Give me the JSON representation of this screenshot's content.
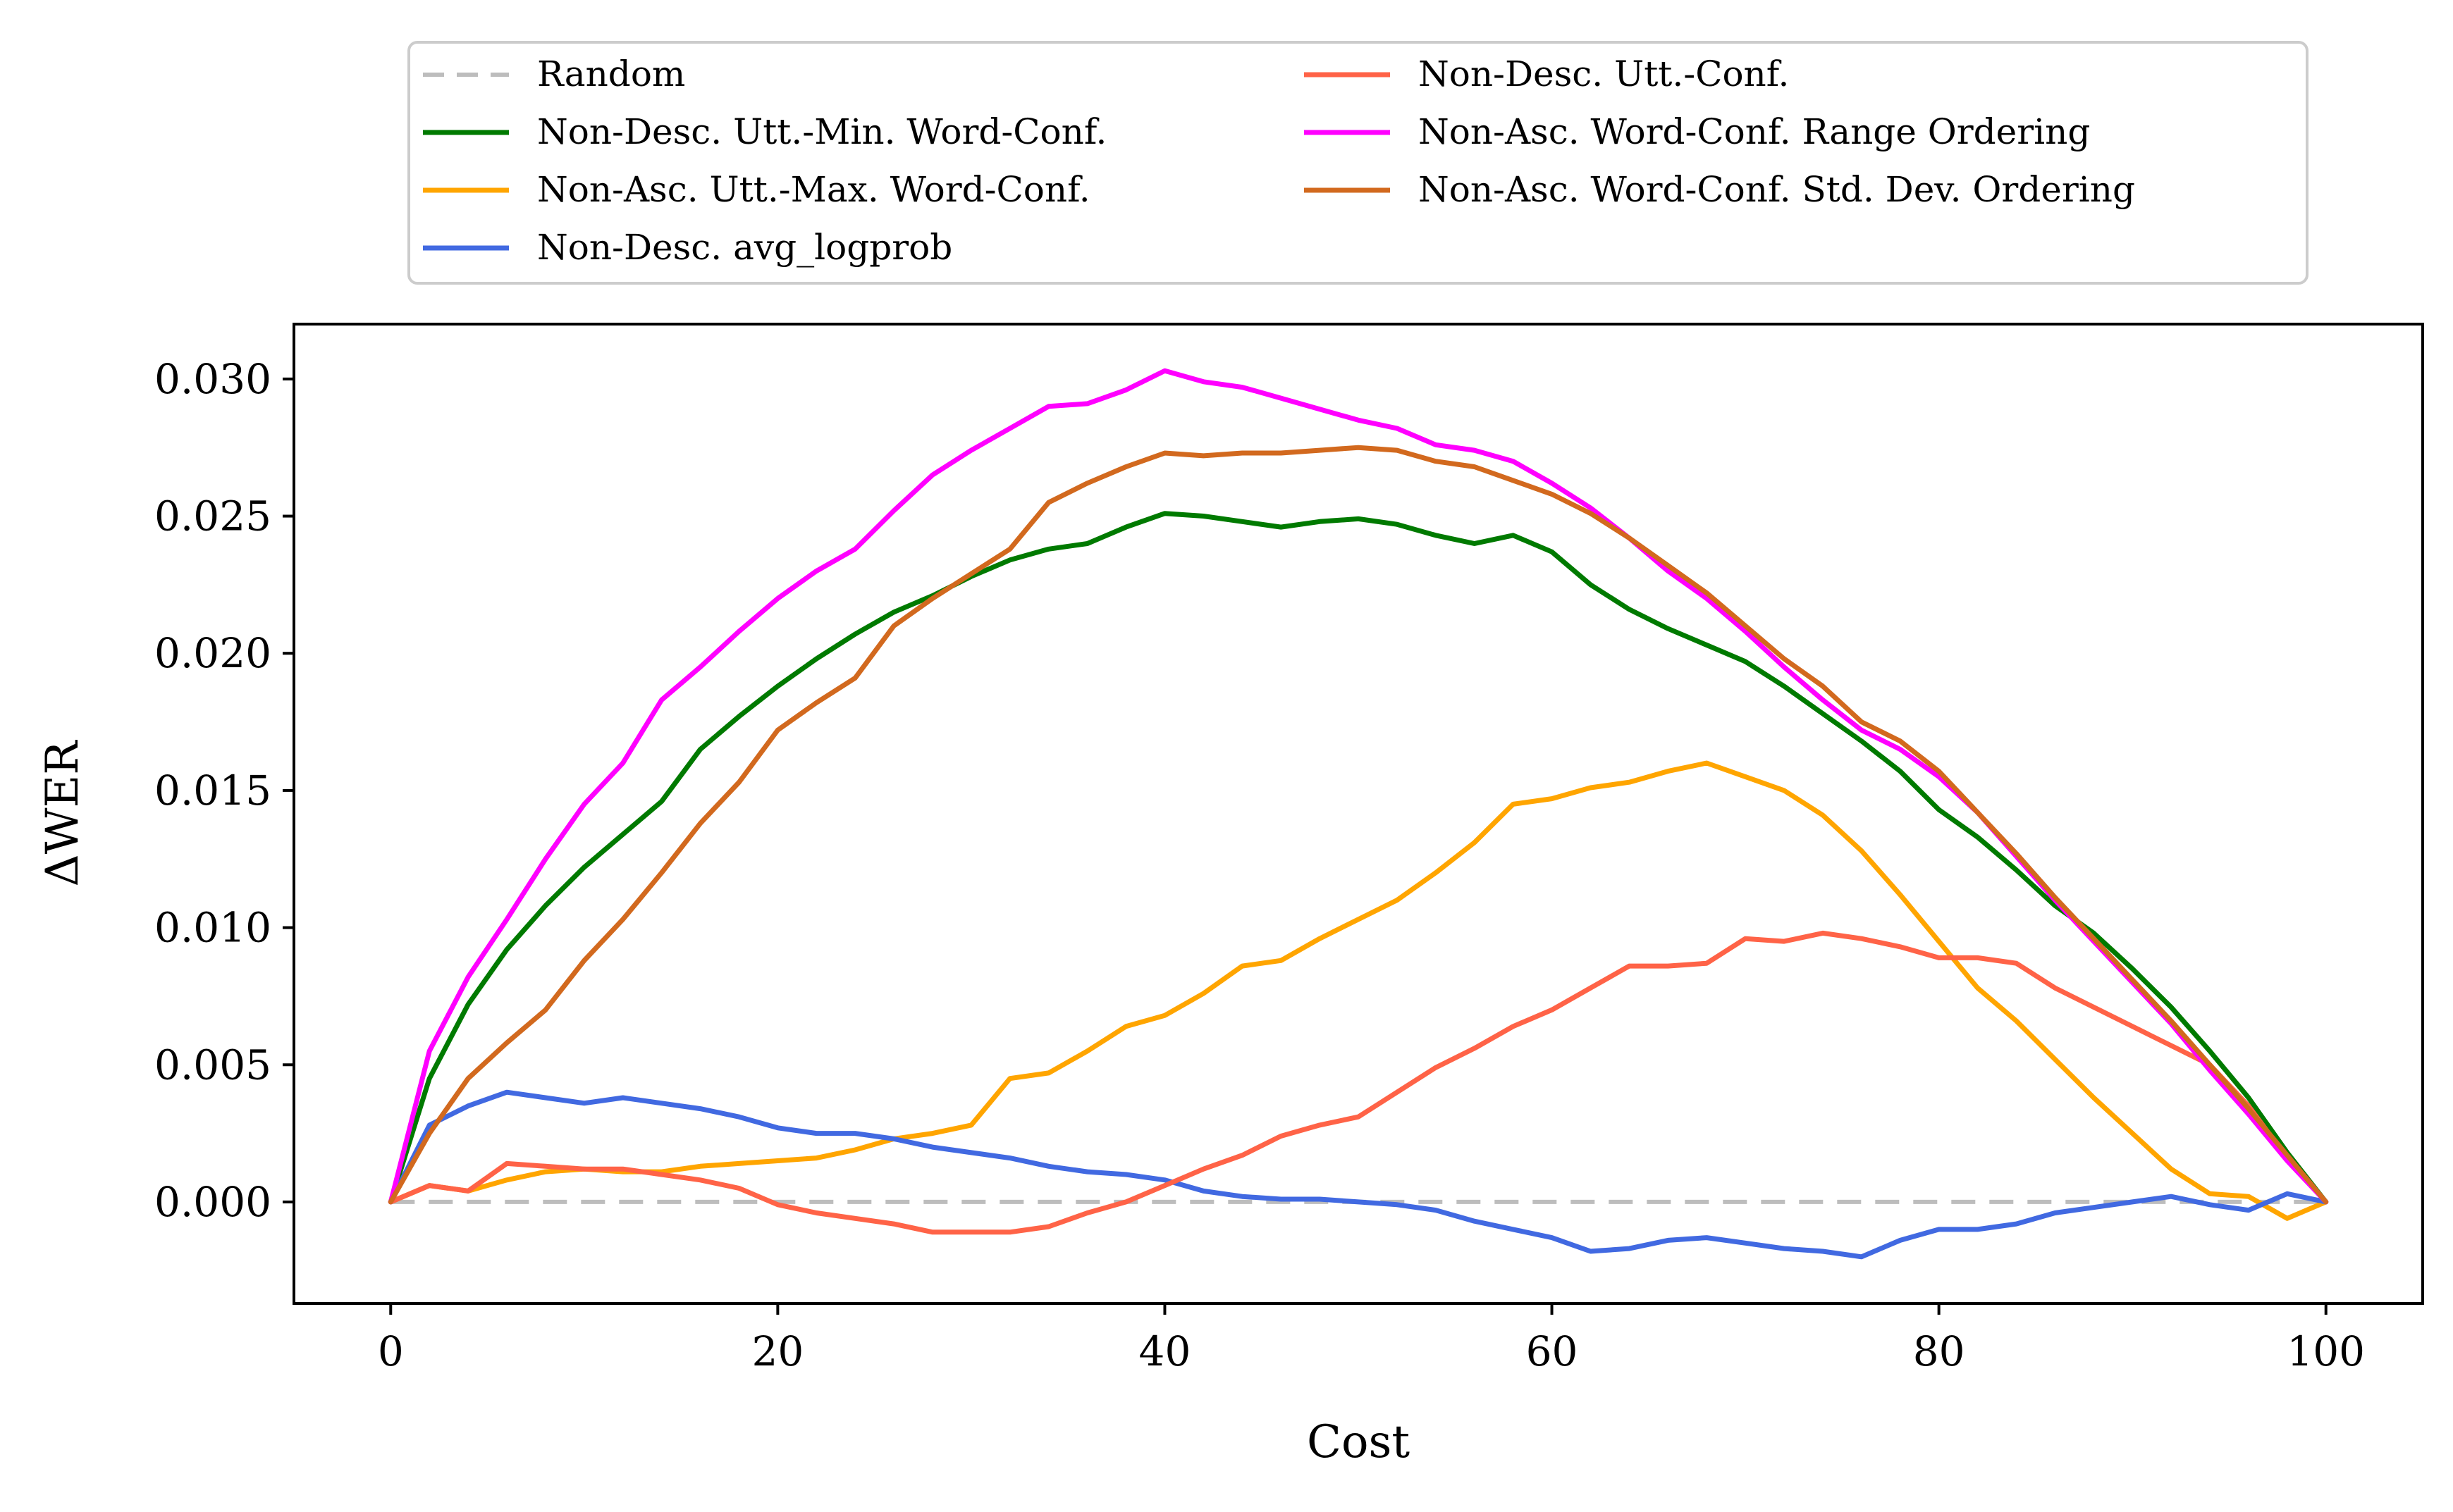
{
  "chart_data": {
    "type": "line",
    "xlabel": "Cost",
    "ylabel": "ΔWER",
    "xlim": [
      -5,
      105
    ],
    "ylim": [
      -0.0037,
      0.032
    ],
    "xticks": [
      0,
      20,
      40,
      60,
      80,
      100
    ],
    "xtick_labels": [
      "0",
      "20",
      "40",
      "60",
      "80",
      "100"
    ],
    "yticks": [
      0.0,
      0.005,
      0.01,
      0.015,
      0.02,
      0.025,
      0.03
    ],
    "ytick_labels": [
      "0.000",
      "0.005",
      "0.010",
      "0.015",
      "0.020",
      "0.025",
      "0.030"
    ],
    "grid": false,
    "legend_position": "top, above plot (2 columns)",
    "x": [
      0,
      2,
      4,
      6,
      8,
      10,
      12,
      14,
      16,
      18,
      20,
      22,
      24,
      26,
      28,
      30,
      32,
      34,
      36,
      38,
      40,
      42,
      44,
      46,
      48,
      50,
      52,
      54,
      56,
      58,
      60,
      62,
      64,
      66,
      68,
      70,
      72,
      74,
      76,
      78,
      80,
      82,
      84,
      86,
      88,
      90,
      92,
      94,
      96,
      98,
      100
    ],
    "series": [
      {
        "name": "Random",
        "color": "#bdbdbd",
        "dash": true,
        "values": [
          0,
          0,
          0,
          0,
          0,
          0,
          0,
          0,
          0,
          0,
          0,
          0,
          0,
          0,
          0,
          0,
          0,
          0,
          0,
          0,
          0,
          0,
          0,
          0,
          0,
          0,
          0,
          0,
          0,
          0,
          0,
          0,
          0,
          0,
          0,
          0,
          0,
          0,
          0,
          0,
          0,
          0,
          0,
          0,
          0,
          0,
          0,
          0,
          0,
          0,
          0
        ]
      },
      {
        "name": "Non-Desc. Utt.-Min. Word-Conf.",
        "color": "#007a00",
        "dash": false,
        "values": [
          0,
          0.0045,
          0.0072,
          0.0092,
          0.0108,
          0.0122,
          0.0134,
          0.0146,
          0.0165,
          0.0177,
          0.0188,
          0.0198,
          0.0207,
          0.0215,
          0.0221,
          0.0228,
          0.0234,
          0.0238,
          0.024,
          0.0246,
          0.0251,
          0.025,
          0.0248,
          0.0246,
          0.0248,
          0.0249,
          0.0247,
          0.0243,
          0.024,
          0.0243,
          0.0237,
          0.0225,
          0.0216,
          0.0209,
          0.0203,
          0.0197,
          0.0188,
          0.0178,
          0.0168,
          0.0157,
          0.0143,
          0.0133,
          0.0121,
          0.0108,
          0.0098,
          0.0085,
          0.0071,
          0.0055,
          0.0038,
          0.0018,
          0
        ]
      },
      {
        "name": "Non-Asc. Utt.-Max. Word-Conf.",
        "color": "#ffa500",
        "dash": false,
        "values": [
          0,
          0.0006,
          0.0004,
          0.0008,
          0.0011,
          0.0012,
          0.0011,
          0.0011,
          0.0013,
          0.0014,
          0.0015,
          0.0016,
          0.0019,
          0.0023,
          0.0025,
          0.0028,
          0.0045,
          0.0047,
          0.0055,
          0.0064,
          0.0068,
          0.0076,
          0.0086,
          0.0088,
          0.0096,
          0.0103,
          0.011,
          0.012,
          0.0131,
          0.0145,
          0.0147,
          0.0151,
          0.0153,
          0.0157,
          0.016,
          0.0155,
          0.015,
          0.0141,
          0.0128,
          0.0112,
          0.0095,
          0.0078,
          0.0066,
          0.0052,
          0.0038,
          0.0025,
          0.0012,
          0.0003,
          0.0002,
          -0.0006,
          0
        ]
      },
      {
        "name": "Non-Desc. avg_logprob",
        "color": "#4169e1",
        "dash": false,
        "values": [
          0,
          0.0028,
          0.0035,
          0.004,
          0.0038,
          0.0036,
          0.0038,
          0.0036,
          0.0034,
          0.0031,
          0.0027,
          0.0025,
          0.0025,
          0.0023,
          0.002,
          0.0018,
          0.0016,
          0.0013,
          0.0011,
          0.001,
          0.0008,
          0.0004,
          0.0002,
          0.0001,
          0.0001,
          0.0,
          -0.0001,
          -0.0003,
          -0.0007,
          -0.001,
          -0.0013,
          -0.0018,
          -0.0017,
          -0.0014,
          -0.0013,
          -0.0015,
          -0.0017,
          -0.0018,
          -0.002,
          -0.0014,
          -0.001,
          -0.001,
          -0.0008,
          -0.0004,
          -0.0002,
          0.0,
          0.0002,
          -0.0001,
          -0.0003,
          0.0003,
          0
        ]
      },
      {
        "name": "Non-Desc. Utt.-Conf.",
        "color": "#ff6347",
        "dash": false,
        "values": [
          0,
          0.0006,
          0.0004,
          0.0014,
          0.0013,
          0.0012,
          0.0012,
          0.001,
          0.0008,
          0.0005,
          -0.0001,
          -0.0004,
          -0.0006,
          -0.0008,
          -0.0011,
          -0.0011,
          -0.0011,
          -0.0009,
          -0.0004,
          0.0,
          0.0006,
          0.0012,
          0.0017,
          0.0024,
          0.0028,
          0.0031,
          0.004,
          0.0049,
          0.0056,
          0.0064,
          0.007,
          0.0078,
          0.0086,
          0.0086,
          0.0087,
          0.0096,
          0.0095,
          0.0098,
          0.0096,
          0.0093,
          0.0089,
          0.0089,
          0.0087,
          0.0078,
          0.0071,
          0.0064,
          0.0057,
          0.005,
          0.0035,
          0.0016,
          0
        ]
      },
      {
        "name": "Non-Asc. Word-Conf. Range Ordering",
        "color": "#ff00ff",
        "dash": false,
        "values": [
          0,
          0.0055,
          0.0082,
          0.0103,
          0.0125,
          0.0145,
          0.016,
          0.0183,
          0.0195,
          0.0208,
          0.022,
          0.023,
          0.0238,
          0.0252,
          0.0265,
          0.0274,
          0.0282,
          0.029,
          0.0291,
          0.0296,
          0.0303,
          0.0299,
          0.0297,
          0.0293,
          0.0289,
          0.0285,
          0.0282,
          0.0276,
          0.0274,
          0.027,
          0.0262,
          0.0253,
          0.0242,
          0.023,
          0.022,
          0.0208,
          0.0195,
          0.0183,
          0.0172,
          0.0165,
          0.0155,
          0.0142,
          0.0126,
          0.011,
          0.0095,
          0.008,
          0.0065,
          0.0048,
          0.0032,
          0.0015,
          0
        ]
      },
      {
        "name": "Non-Asc. Word-Conf. Std. Dev. Ordering",
        "color": "#d2691e",
        "dash": false,
        "values": [
          0,
          0.0025,
          0.0045,
          0.0058,
          0.007,
          0.0088,
          0.0103,
          0.012,
          0.0138,
          0.0153,
          0.0172,
          0.0182,
          0.0191,
          0.021,
          0.022,
          0.0229,
          0.0238,
          0.0255,
          0.0262,
          0.0268,
          0.0273,
          0.0272,
          0.0273,
          0.0273,
          0.0274,
          0.0275,
          0.0274,
          0.027,
          0.0268,
          0.0263,
          0.0258,
          0.0251,
          0.0242,
          0.0232,
          0.0222,
          0.021,
          0.0198,
          0.0188,
          0.0175,
          0.0168,
          0.0157,
          0.0142,
          0.0127,
          0.0111,
          0.0096,
          0.0081,
          0.0066,
          0.005,
          0.0034,
          0.0017,
          0
        ]
      }
    ]
  }
}
